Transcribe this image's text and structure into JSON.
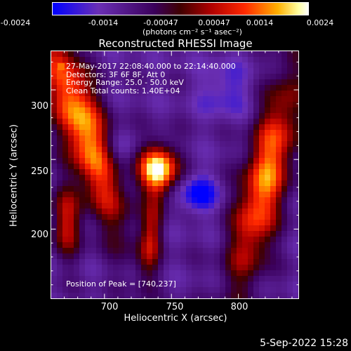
{
  "colorbar": {
    "tick_labels": [
      "-0.0024",
      "-0.0014",
      "-0.00047",
      "0.00047",
      "0.0014",
      "0.0024"
    ],
    "unit_label": "(photons cm⁻² s⁻¹ asec⁻²)",
    "range": [
      -0.0024,
      0.0024
    ],
    "colors": [
      "#0000ff",
      "#6a2fb5",
      "#3a005a",
      "#8a0000",
      "#ff2000",
      "#ffa000",
      "#ffffa0",
      "#ffffff"
    ]
  },
  "plot": {
    "title": "Reconstructed RHESSI Image",
    "xlabel": "Heliocentric X (arcsec)",
    "ylabel": "Heliocentric Y (arcsec)",
    "xticks": [
      "700",
      "750",
      "800"
    ],
    "yticks": [
      "300",
      "250",
      "200"
    ],
    "info_lines": [
      "27-May-2017 22:08:40.000 to 22:14:40.000",
      "Detectors: 3F 6F 8F, Att 0",
      "Energy Range: 25.0 - 50.0 keV",
      "Clean      Total counts: 1.40E+04"
    ],
    "peak_text": "Position of Peak = [740,237]"
  },
  "footer": {
    "date": "5-Sep-2022 15:28"
  },
  "chart_data": {
    "type": "heatmap",
    "title": "Reconstructed RHESSI Image",
    "xlabel": "Heliocentric X (arcsec)",
    "ylabel": "Heliocentric Y (arcsec)",
    "xlim": [
      660,
      845
    ],
    "ylim": [
      150,
      328
    ],
    "zlim": [
      -0.0024,
      0.0024
    ],
    "peak": [
      740,
      237
    ],
    "sources": [
      {
        "x": 740,
        "y": 243,
        "peak": 0.0024
      },
      {
        "x": 683,
        "y": 290,
        "peak": 0.0016
      },
      {
        "x": 675,
        "y": 215,
        "peak": 0.001
      },
      {
        "x": 820,
        "y": 240,
        "peak": 0.0015
      },
      {
        "x": 735,
        "y": 200,
        "peak": 0.0008
      }
    ]
  }
}
